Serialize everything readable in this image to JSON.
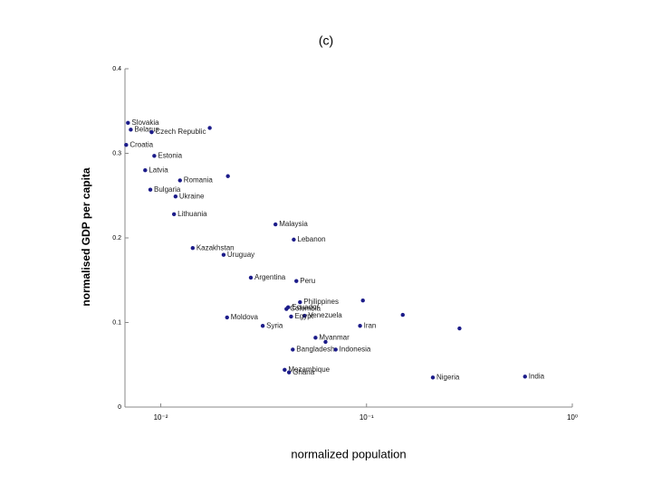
{
  "chart_data": {
    "type": "scatter",
    "title": "(c)",
    "x_label": "normalized population",
    "y_label": "normalised GDP per capita",
    "x_scale": "log",
    "color": "#1c1c8a",
    "xlim": [
      0.0067,
      1
    ],
    "ylim": [
      0,
      0.4
    ],
    "xticks": [
      {
        "value": 0.01,
        "label": "10⁻²"
      },
      {
        "value": 0.1,
        "label": "10⁻¹"
      },
      {
        "value": 1,
        "label": "10⁰"
      }
    ],
    "yticks": [
      0,
      0.1,
      0.2,
      0.3,
      0.4
    ],
    "x": [
      0.00693,
      0.00715,
      0.00903,
      0.00679,
      0.0093,
      0.0084,
      0.0124,
      0.0089,
      0.0118,
      0.0116,
      0.0173,
      0.0212,
      0.0361,
      0.0443,
      0.0143,
      0.0202,
      0.0274,
      0.0456,
      0.0416,
      0.0408,
      0.0475,
      0.05,
      0.021,
      0.043,
      0.0313,
      0.093,
      0.096,
      0.15,
      0.283,
      0.0565,
      0.0438,
      0.0632,
      0.0708,
      0.04,
      0.042,
      0.21,
      0.589
    ],
    "values": [
      0.336,
      0.328,
      0.325,
      0.31,
      0.297,
      0.28,
      0.268,
      0.257,
      0.249,
      0.228,
      0.33,
      0.273,
      0.216,
      0.198,
      0.188,
      0.18,
      0.153,
      0.149,
      0.118,
      0.116,
      0.124,
      0.108,
      0.106,
      0.107,
      0.096,
      0.096,
      0.126,
      0.109,
      0.093,
      0.082,
      0.068,
      0.077,
      0.068,
      0.044,
      0.041,
      0.035,
      0.036
    ],
    "point_labels": [
      "Slovakia",
      "Belarus",
      "Czech Republic",
      "Croatia",
      "Estonia",
      "Latvia",
      "Romania",
      "Bulgaria",
      "Ukraine",
      "Lithuania",
      null,
      null,
      "Malaysia",
      "Lebanon",
      "Kazakhstan",
      "Uruguay",
      "Argentina",
      "Peru",
      "Ecuador",
      "Colombia",
      "Philippines",
      "Venezuela",
      "Moldova",
      "Egypt",
      "Syria",
      "Iran",
      null,
      null,
      null,
      "Myanmar",
      "Bangladesh",
      null,
      "Indonesia",
      "Mozambique",
      "Ghana",
      "Nigeria",
      "India"
    ]
  }
}
